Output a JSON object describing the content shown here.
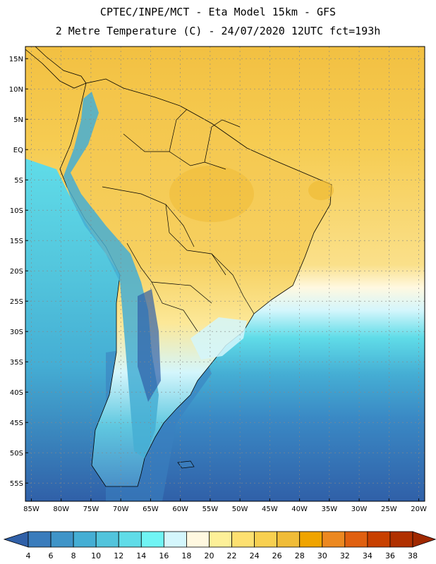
{
  "header": {
    "line1": "CPTEC/INPE/MCT -  Eta Model 15km - GFS",
    "line2": "2 Metre Temperature (C) - 24/07/2020 12UTC fct=193h"
  },
  "map": {
    "lon_range": [
      -86,
      -19
    ],
    "lat_range": [
      -58,
      17
    ],
    "lat_ticks": [
      {
        "value": 15,
        "label": "15N"
      },
      {
        "value": 10,
        "label": "10N"
      },
      {
        "value": 5,
        "label": "5N"
      },
      {
        "value": 0,
        "label": "EQ"
      },
      {
        "value": -5,
        "label": "5S"
      },
      {
        "value": -10,
        "label": "10S"
      },
      {
        "value": -15,
        "label": "15S"
      },
      {
        "value": -20,
        "label": "20S"
      },
      {
        "value": -25,
        "label": "25S"
      },
      {
        "value": -30,
        "label": "30S"
      },
      {
        "value": -35,
        "label": "35S"
      },
      {
        "value": -40,
        "label": "40S"
      },
      {
        "value": -45,
        "label": "45S"
      },
      {
        "value": -50,
        "label": "50S"
      },
      {
        "value": -55,
        "label": "55S"
      }
    ],
    "lon_ticks": [
      {
        "value": -85,
        "label": "85W"
      },
      {
        "value": -80,
        "label": "80W"
      },
      {
        "value": -75,
        "label": "75W"
      },
      {
        "value": -70,
        "label": "70W"
      },
      {
        "value": -65,
        "label": "65W"
      },
      {
        "value": -60,
        "label": "60W"
      },
      {
        "value": -55,
        "label": "55W"
      },
      {
        "value": -50,
        "label": "50W"
      },
      {
        "value": -45,
        "label": "45W"
      },
      {
        "value": -40,
        "label": "40W"
      },
      {
        "value": -35,
        "label": "35W"
      },
      {
        "value": -30,
        "label": "30W"
      },
      {
        "value": -25,
        "label": "25W"
      },
      {
        "value": -20,
        "label": "20W"
      }
    ],
    "grid": true
  },
  "colorbar": {
    "levels": [
      "4",
      "6",
      "8",
      "10",
      "12",
      "14",
      "16",
      "18",
      "20",
      "22",
      "24",
      "26",
      "28",
      "30",
      "32",
      "34",
      "36",
      "38"
    ],
    "colors": [
      "#3060a8",
      "#3a7cbc",
      "#3f94c8",
      "#45aed4",
      "#52c4dc",
      "#60dce8",
      "#70f4f4",
      "#d4f6fc",
      "#fff8e0",
      "#fdf098",
      "#fde070",
      "#f8d050",
      "#f0bc38",
      "#f0a400",
      "#ec8820",
      "#e06010",
      "#c84000",
      "#b03000",
      "#a02800"
    ]
  }
}
